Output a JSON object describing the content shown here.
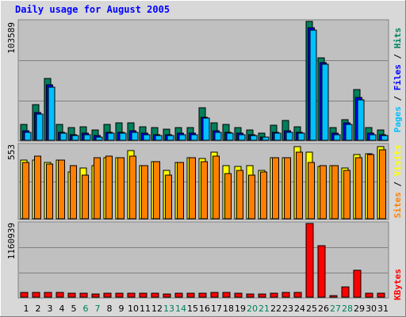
{
  "chart_data": {
    "type": "bar",
    "title": "Daily usage for August 2005",
    "x": [
      "1",
      "2",
      "3",
      "4",
      "5",
      "6",
      "7",
      "8",
      "9",
      "10",
      "11",
      "12",
      "13",
      "14",
      "15",
      "16",
      "17",
      "18",
      "19",
      "20",
      "21",
      "22",
      "23",
      "24",
      "25",
      "26",
      "27",
      "28",
      "29",
      "30",
      "31"
    ],
    "weekend_days": [
      6,
      7,
      13,
      14,
      20,
      21,
      27,
      28
    ],
    "colors": {
      "hits": "#00805c",
      "files": "#0000ff",
      "pages": "#00c0ff",
      "visits": "#ffff00",
      "sites": "#ff8000",
      "kbytes": "#ff0000",
      "weekend_label": "#00805c",
      "weekday_label": "#000000",
      "title": "#0000ff",
      "plot_bg": "#c0c0c0",
      "frame_bg": "#d8d8d8"
    },
    "panels": [
      {
        "id": "hits-files-pages",
        "max_label": "103589",
        "ymax": 103589,
        "right_label": [
          {
            "text": "Pages",
            "color": "#00c0ff"
          },
          {
            "text": " / ",
            "color": "#000000"
          },
          {
            "text": "Files",
            "color": "#0000ff"
          },
          {
            "text": " / ",
            "color": "#000000"
          },
          {
            "text": "Hits",
            "color": "#00805c"
          }
        ],
        "series": [
          {
            "key": "hits",
            "values": [
              14000,
              31000,
              54000,
              14000,
              11000,
              12000,
              9000,
              14000,
              15000,
              15000,
              12000,
              11000,
              10000,
              11000,
              11000,
              28000,
              15000,
              14000,
              11000,
              9000,
              6000,
              13000,
              17000,
              12000,
              103589,
              72000,
              11000,
              18000,
              44000,
              11000,
              9000
            ]
          },
          {
            "key": "files",
            "values": [
              8000,
              24000,
              48000,
              7000,
              5000,
              6000,
              4000,
              7000,
              7000,
              8000,
              6000,
              5000,
              5000,
              6000,
              6000,
              20000,
              8000,
              7000,
              6000,
              5000,
              3000,
              7000,
              8000,
              7000,
              98000,
              68000,
              6000,
              15000,
              37000,
              6000,
              5000
            ]
          },
          {
            "key": "pages",
            "values": [
              7000,
              23000,
              46000,
              6000,
              4000,
              5000,
              3000,
              6000,
              6000,
              7000,
              5000,
              4000,
              4000,
              5000,
              5000,
              19000,
              7000,
              6000,
              5000,
              4000,
              2500,
              6000,
              7000,
              6000,
              96000,
              66000,
              5000,
              14000,
              35000,
              5000,
              4000
            ]
          }
        ]
      },
      {
        "id": "visits-sites",
        "max_label": "553",
        "ymax": 553,
        "right_label": [
          {
            "text": "Sites",
            "color": "#ff8000"
          },
          {
            "text": " / ",
            "color": "#000000"
          },
          {
            "text": "Visits",
            "color": "#ffff00"
          }
        ],
        "series": [
          {
            "key": "visits",
            "values": [
              440,
              440,
              420,
              440,
              350,
              380,
              400,
              460,
              460,
              510,
              400,
              430,
              360,
              420,
              460,
              450,
              500,
              400,
              390,
              400,
              360,
              460,
              460,
              540,
              500,
              390,
              400,
              380,
              480,
              490,
              540
            ]
          },
          {
            "key": "sites",
            "values": [
              420,
              470,
              410,
              440,
              400,
              330,
              460,
              470,
              460,
              470,
              400,
              430,
              330,
              420,
              460,
              430,
              470,
              340,
              360,
              330,
              350,
              460,
              460,
              500,
              420,
              400,
              400,
              360,
              460,
              480,
              520
            ]
          }
        ]
      },
      {
        "id": "kbytes",
        "max_label": "1160939",
        "ymax": 1160939,
        "right_label": [
          {
            "text": "KBytes",
            "color": "#ff0000"
          }
        ],
        "series": [
          {
            "key": "kbytes",
            "values": [
              70000,
              70000,
              70000,
              80000,
              65000,
              60000,
              55000,
              65000,
              65000,
              65000,
              65000,
              60000,
              55000,
              60000,
              60000,
              65000,
              80000,
              70000,
              65000,
              55000,
              55000,
              65000,
              70000,
              70000,
              1160939,
              810000,
              30000,
              160000,
              430000,
              65000,
              60000
            ]
          }
        ]
      }
    ]
  }
}
